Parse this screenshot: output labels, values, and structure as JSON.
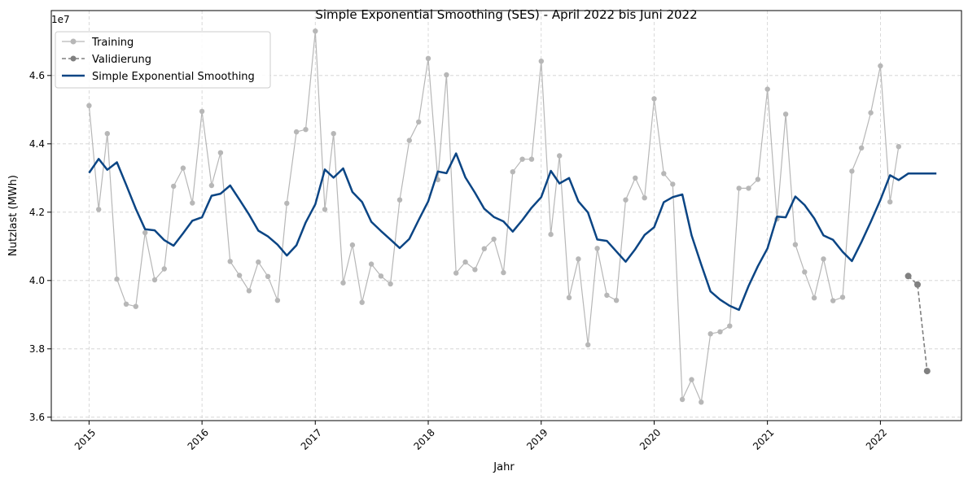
{
  "chart_data": {
    "type": "line",
    "title": "Simple Exponential Smoothing (SES) - April 2022 bis Juni 2022",
    "xlabel": "Jahr",
    "ylabel": "Nutzlast (MWh)",
    "y_offset_label": "1e7",
    "xlim": [
      "2014-09-01",
      "2022-09-20"
    ],
    "ylim": [
      35900000,
      47900000
    ],
    "grid": true,
    "legend_position": "top-left",
    "x_ticks": [
      {
        "date": "2015-01-01",
        "label": "2015"
      },
      {
        "date": "2016-01-01",
        "label": "2016"
      },
      {
        "date": "2017-01-01",
        "label": "2017"
      },
      {
        "date": "2018-01-01",
        "label": "2018"
      },
      {
        "date": "2019-01-01",
        "label": "2019"
      },
      {
        "date": "2020-01-01",
        "label": "2020"
      },
      {
        "date": "2021-01-01",
        "label": "2021"
      },
      {
        "date": "2022-01-01",
        "label": "2022"
      }
    ],
    "y_ticks": [
      {
        "value": 36000000,
        "label": "3.6"
      },
      {
        "value": 38000000,
        "label": "3.8"
      },
      {
        "value": 40000000,
        "label": "4.0"
      },
      {
        "value": 42000000,
        "label": "4.2"
      },
      {
        "value": 44000000,
        "label": "4.4"
      },
      {
        "value": 46000000,
        "label": "4.6"
      }
    ],
    "series": [
      {
        "name": "Training",
        "color": "#b7b7b7",
        "style": "solid-marker",
        "start": "2015-01",
        "values": [
          45120000,
          42080000,
          44300000,
          40040000,
          39310000,
          39240000,
          41400000,
          40020000,
          40340000,
          42760000,
          43290000,
          42270000,
          44950000,
          42780000,
          43740000,
          40560000,
          40150000,
          39700000,
          40540000,
          40120000,
          39420000,
          42260000,
          44350000,
          44420000,
          47300000,
          42080000,
          44300000,
          39930000,
          41040000,
          39360000,
          40480000,
          40130000,
          39900000,
          42360000,
          44100000,
          44640000,
          46500000,
          42950000,
          46020000,
          40220000,
          40540000,
          40320000,
          40930000,
          41210000,
          40230000,
          43180000,
          43550000,
          43550000,
          46420000,
          41350000,
          43650000,
          39500000,
          40630000,
          38120000,
          40940000,
          39570000,
          39420000,
          42360000,
          43000000,
          42420000,
          45320000,
          43130000,
          42820000,
          36520000,
          37100000,
          36440000,
          38440000,
          38500000,
          38670000,
          42700000,
          42700000,
          42960000,
          45600000,
          41800000,
          44870000,
          41050000,
          40250000,
          39490000,
          40630000,
          39410000,
          39510000,
          43200000,
          43880000,
          44910000,
          46280000,
          42300000,
          43920000
        ]
      },
      {
        "name": "Validierung",
        "color": "#808080",
        "style": "dashed-marker",
        "start": "2022-04",
        "values": [
          40130000,
          39880000,
          37350000
        ]
      },
      {
        "name": "Simple Exponential Smoothing",
        "color": "#0b4584",
        "style": "solid",
        "start": "2015-01",
        "values": [
          43150000,
          43560000,
          43240000,
          43460000,
          42800000,
          42100000,
          41500000,
          41470000,
          41180000,
          41020000,
          41380000,
          41750000,
          41850000,
          42480000,
          42540000,
          42780000,
          42370000,
          41930000,
          41460000,
          41290000,
          41050000,
          40730000,
          41030000,
          41700000,
          42230000,
          43250000,
          43010000,
          43280000,
          42590000,
          42300000,
          41720000,
          41450000,
          41200000,
          40950000,
          41220000,
          41770000,
          42320000,
          43190000,
          43140000,
          43720000,
          43020000,
          42570000,
          42100000,
          41860000,
          41730000,
          41430000,
          41770000,
          42130000,
          42440000,
          43210000,
          42840000,
          43000000,
          42320000,
          41990000,
          41200000,
          41160000,
          40850000,
          40550000,
          40920000,
          41330000,
          41560000,
          42290000,
          42440000,
          42520000,
          41320000,
          40470000,
          39680000,
          39440000,
          39260000,
          39140000,
          39840000,
          40420000,
          40940000,
          41870000,
          41850000,
          42460000,
          42210000,
          41820000,
          41320000,
          41190000,
          40840000,
          40570000,
          41130000,
          41720000,
          42360000,
          43080000,
          42940000,
          43130000,
          43130000,
          43130000,
          43130000
        ]
      }
    ]
  }
}
